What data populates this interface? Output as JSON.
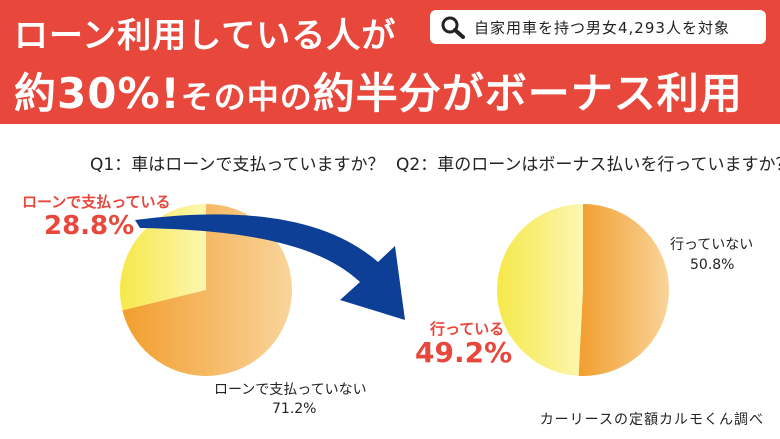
{
  "header": {
    "line1": "ローン利用している人が",
    "line2_prefix": "約30%!",
    "line2_middle": "その中の",
    "line2_suffix": "約半分がボーナス利用",
    "survey_note": "自家用車を持つ男女4,293人を対象",
    "bg_color": "#e8473b"
  },
  "credit": "カーリースの定額カルモくん調べ",
  "chart_data": [
    {
      "type": "pie",
      "title": "Q1：車はローンで支払っていますか？",
      "slices": [
        {
          "label": "ローンで支払っている",
          "value": 28.8,
          "display": "28.8%",
          "color": "#f6e84a"
        },
        {
          "label": "ローンで支払っていない",
          "value": 71.2,
          "display": "71.2%",
          "color": "#f4b548"
        }
      ]
    },
    {
      "type": "pie",
      "title": "Q2：車のローンはボーナス払いを行っていますか？",
      "slices": [
        {
          "label": "行っている",
          "value": 49.2,
          "display": "49.2%",
          "color": "#f6e84a"
        },
        {
          "label": "行っていない",
          "value": 50.8,
          "display": "50.8%",
          "color": "#f4b548"
        }
      ]
    }
  ]
}
